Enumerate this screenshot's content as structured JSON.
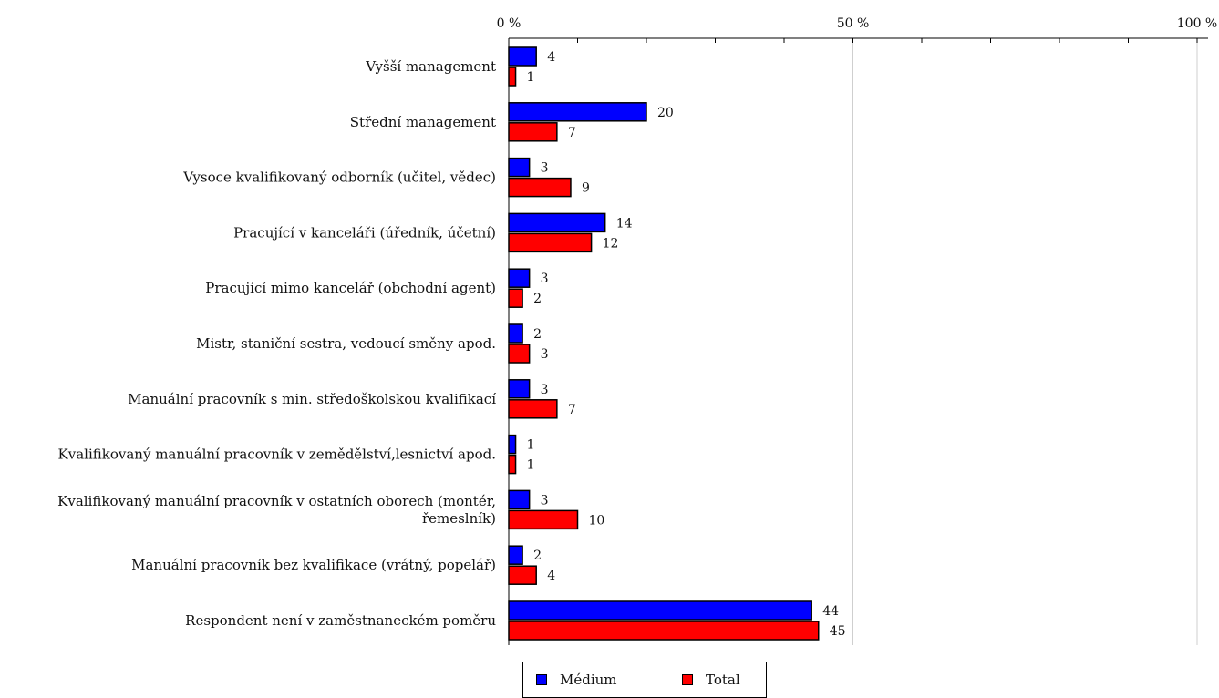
{
  "chart_data": {
    "type": "bar",
    "orientation": "horizontal",
    "categories": [
      "Vyšší management",
      "Střední management",
      "Vysoce kvalifikovaný odborník (učitel, vědec)",
      "Pracující v kanceláři (úředník, účetní)",
      "Pracující mimo kancelář (obchodní agent)",
      "Mistr, staniční sestra, vedoucí směny apod.",
      "Manuální pracovník s min. středoškolskou kvalifikací",
      "Kvalifikovaný manuální pracovník v zemědělství,lesnictví apod.",
      "Kvalifikovaný manuální pracovník v ostatních oborech (montér,\nřemeslník)",
      "Manuální pracovník bez kvalifikace (vrátný, popelář)",
      "Respondent není v zaměstnaneckém poměru"
    ],
    "series": [
      {
        "name": "Médium",
        "color": "#0000ff",
        "values": [
          4,
          20,
          3,
          14,
          3,
          2,
          3,
          1,
          3,
          2,
          44
        ]
      },
      {
        "name": "Total",
        "color": "#ff0000",
        "values": [
          1,
          7,
          9,
          12,
          2,
          3,
          7,
          1,
          10,
          4,
          45
        ]
      }
    ],
    "xlim": [
      0,
      100
    ],
    "xtick_labels": [
      "0 %",
      "50 %",
      "100 %"
    ],
    "xticks": [
      0,
      50,
      100
    ],
    "grid": true,
    "legend_position": "bottom"
  }
}
